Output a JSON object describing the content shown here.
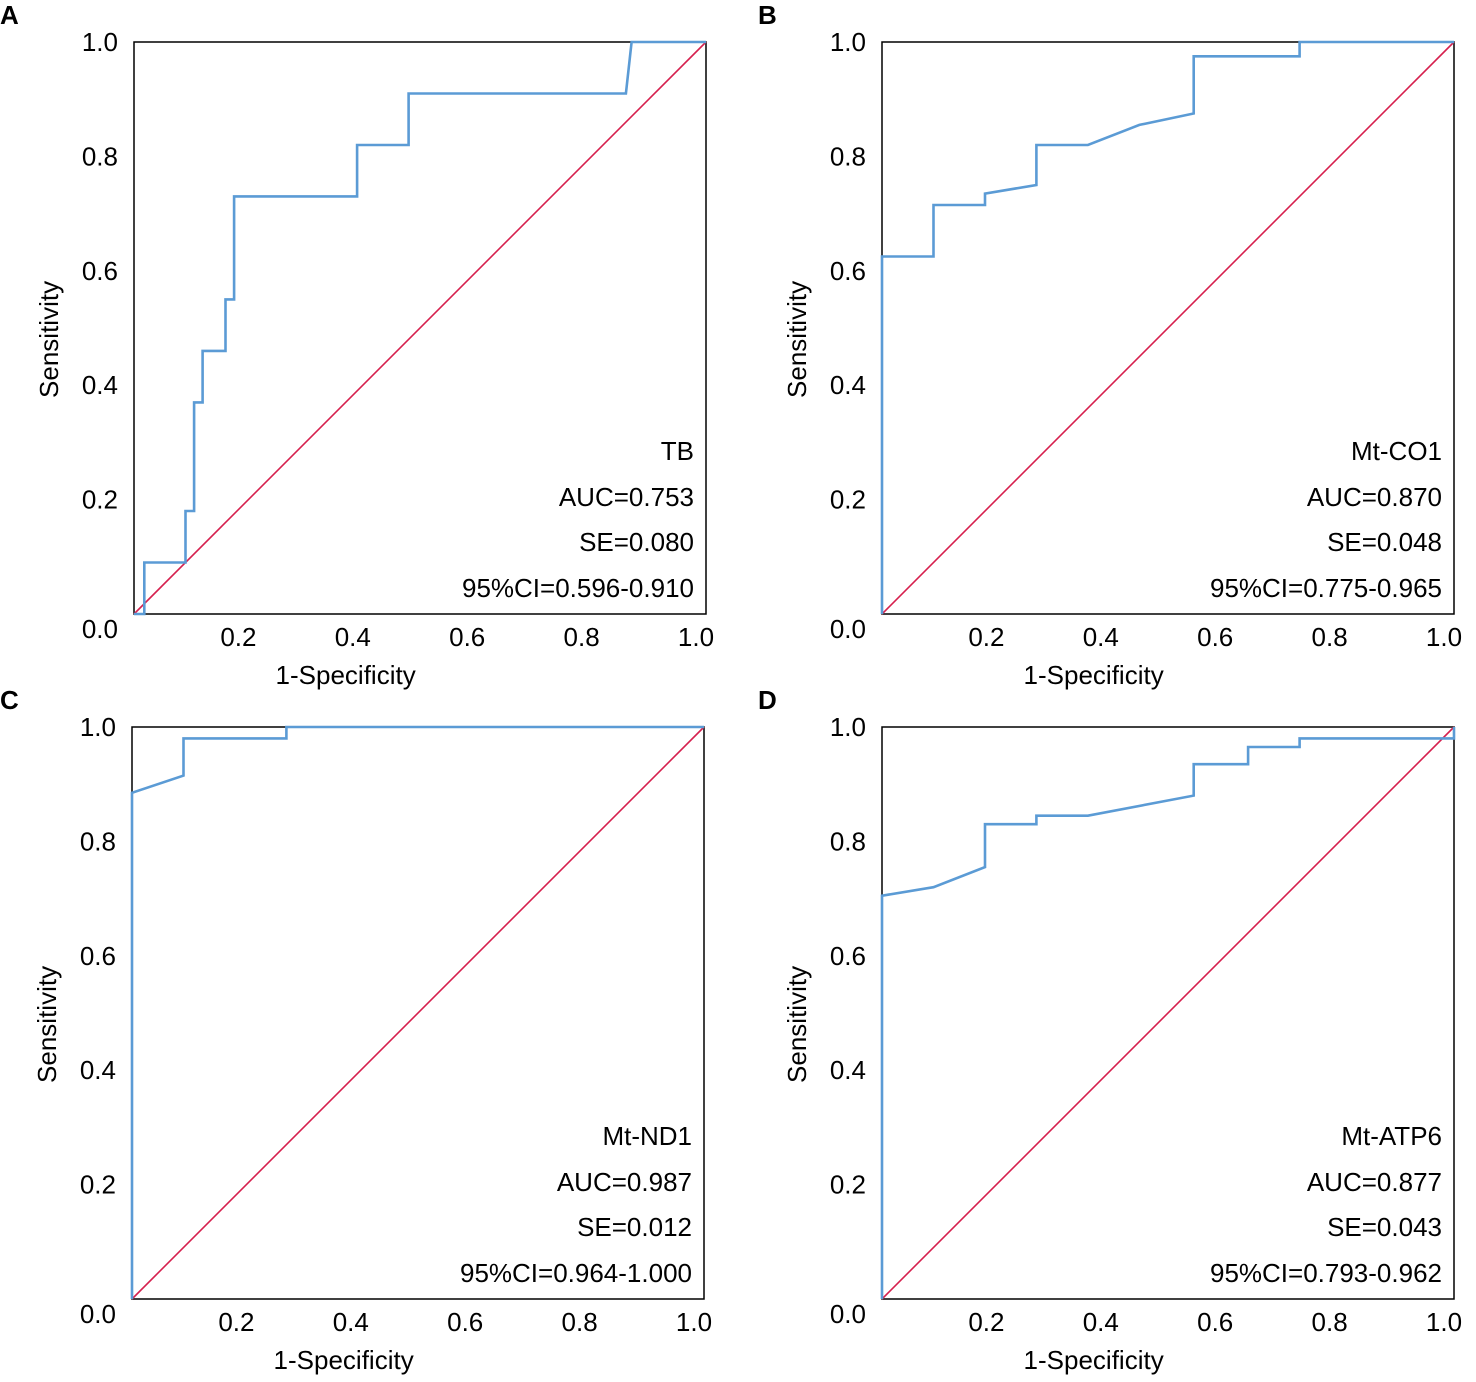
{
  "colors": {
    "roc_curve": "#5b9bd5",
    "reference_line": "#d6204e",
    "frame": "#000000"
  },
  "chart_data": [
    {
      "panel": "A",
      "type": "line",
      "xlabel": "1-Specificity",
      "ylabel": "Sensitivity",
      "xlim": [
        0,
        1
      ],
      "ylim": [
        0,
        1
      ],
      "x_ticks": [
        "0.2",
        "0.4",
        "0.6",
        "0.8",
        "1.0"
      ],
      "y_ticks": [
        "0.0",
        "0.2",
        "0.4",
        "0.6",
        "0.8",
        "1.0"
      ],
      "annotations": [
        "TB",
        "AUC=0.753",
        "SE=0.080",
        "95%CI=0.596-0.910"
      ],
      "series": [
        {
          "name": "ROC",
          "x": [
            0,
            0.018,
            0.018,
            0.09,
            0.09,
            0.105,
            0.105,
            0.12,
            0.12,
            0.16,
            0.16,
            0.175,
            0.175,
            0.39,
            0.39,
            0.48,
            0.48,
            0.86,
            0.87,
            1.0
          ],
          "y": [
            0,
            0.0,
            0.09,
            0.09,
            0.18,
            0.18,
            0.37,
            0.37,
            0.46,
            0.46,
            0.55,
            0.55,
            0.73,
            0.73,
            0.82,
            0.82,
            0.91,
            0.91,
            1.0,
            1.0
          ]
        },
        {
          "name": "Reference",
          "x": [
            0,
            1
          ],
          "y": [
            0,
            1
          ]
        }
      ]
    },
    {
      "panel": "B",
      "type": "line",
      "xlabel": "1-Specificity",
      "ylabel": "Sensitivity",
      "xlim": [
        0,
        1
      ],
      "ylim": [
        0,
        1
      ],
      "x_ticks": [
        "0.2",
        "0.4",
        "0.6",
        "0.8",
        "1.0"
      ],
      "y_ticks": [
        "0.0",
        "0.2",
        "0.4",
        "0.6",
        "0.8",
        "1.0"
      ],
      "annotations": [
        "Mt-CO1",
        "AUC=0.870",
        "SE=0.048",
        "95%CI=0.775-0.965"
      ],
      "series": [
        {
          "name": "ROC",
          "x": [
            0,
            0,
            0.09,
            0.09,
            0.18,
            0.18,
            0.27,
            0.27,
            0.36,
            0.45,
            0.545,
            0.545,
            0.73,
            0.73,
            1.0
          ],
          "y": [
            0,
            0.625,
            0.625,
            0.715,
            0.715,
            0.735,
            0.75,
            0.82,
            0.82,
            0.855,
            0.875,
            0.975,
            0.975,
            1.0,
            1.0
          ]
        },
        {
          "name": "Reference",
          "x": [
            0,
            1
          ],
          "y": [
            0,
            1
          ]
        }
      ]
    },
    {
      "panel": "C",
      "type": "line",
      "xlabel": "1-Specificity",
      "ylabel": "Sensitivity",
      "xlim": [
        0,
        1
      ],
      "ylim": [
        0,
        1
      ],
      "x_ticks": [
        "0.2",
        "0.4",
        "0.6",
        "0.8",
        "1.0"
      ],
      "y_ticks": [
        "0.0",
        "0.2",
        "0.4",
        "0.6",
        "0.8",
        "1.0"
      ],
      "annotations": [
        "Mt-ND1",
        "AUC=0.987",
        "SE=0.012",
        "95%CI=0.964-1.000"
      ],
      "series": [
        {
          "name": "ROC",
          "x": [
            0,
            0,
            0.09,
            0.09,
            0.27,
            0.27,
            1.0
          ],
          "y": [
            0,
            0.885,
            0.915,
            0.98,
            0.98,
            1.0,
            1.0
          ]
        },
        {
          "name": "Reference",
          "x": [
            0,
            1
          ],
          "y": [
            0,
            1
          ]
        }
      ]
    },
    {
      "panel": "D",
      "type": "line",
      "xlabel": "1-Specificity",
      "ylabel": "Sensitivity",
      "xlim": [
        0,
        1
      ],
      "ylim": [
        0,
        1
      ],
      "x_ticks": [
        "0.2",
        "0.4",
        "0.6",
        "0.8",
        "1.0"
      ],
      "y_ticks": [
        "0.0",
        "0.2",
        "0.4",
        "0.6",
        "0.8",
        "1.0"
      ],
      "annotations": [
        "Mt-ATP6",
        "AUC=0.877",
        "SE=0.043",
        "95%CI=0.793-0.962"
      ],
      "series": [
        {
          "name": "ROC",
          "x": [
            0,
            0,
            0.09,
            0.18,
            0.18,
            0.27,
            0.27,
            0.36,
            0.545,
            0.545,
            0.64,
            0.64,
            0.73,
            0.73,
            1.0,
            1.0
          ],
          "y": [
            0,
            0.705,
            0.72,
            0.755,
            0.83,
            0.83,
            0.845,
            0.845,
            0.88,
            0.935,
            0.935,
            0.965,
            0.965,
            0.98,
            0.98,
            1.0
          ]
        },
        {
          "name": "Reference",
          "x": [
            0,
            1
          ],
          "y": [
            0,
            1
          ]
        }
      ]
    }
  ]
}
